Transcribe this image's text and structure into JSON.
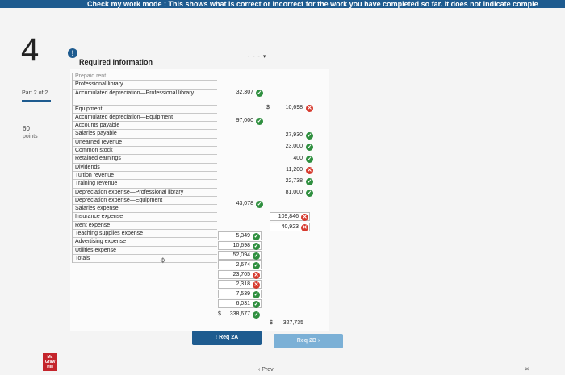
{
  "topbar": {
    "text": "Check my work mode : This shows what is correct or incorrect for the work you have completed so far. It does not indicate comple"
  },
  "question": {
    "number": "4",
    "info_icon": "!",
    "required_info": "Required information"
  },
  "part": {
    "label": "Part 2 of 2",
    "points_value": "60",
    "points_label": "points"
  },
  "sheet": {
    "scroll_marks": "- - - ▾",
    "cut_label": "Prepaid rent",
    "accounts": [
      "Professional library",
      "Accumulated depreciation—Professional library",
      "Equipment",
      "Accumulated depreciation—Equipment",
      "Accounts payable",
      "Salaries payable",
      "Unearned revenue",
      "Common stock",
      "Retained earnings",
      "Dividends",
      "Tuition revenue",
      "Training revenue",
      "Depreciation expense—Professional library",
      "Depreciation expense—Equipment",
      "Salaries expense",
      "Insurance expense",
      "Rent expense",
      "Teaching supplies expense",
      "Advertising expense",
      "Utilities expense",
      "Totals"
    ],
    "debits": {
      "prof_library": "32,307",
      "equipment": "97,000",
      "dividends": "43,078",
      "dep_prof": "5,349",
      "dep_equip": "10,698",
      "salaries": "52,094",
      "insurance": "2,674",
      "rent": "23,705",
      "teaching": "2,318",
      "advertising": "7,539",
      "utilities": "6,031",
      "total": "338,677",
      "dollar": "$"
    },
    "credits": {
      "acc_dep_prof": "10,698",
      "acc_dep_equip": "27,930",
      "accounts_payable": "23,000",
      "salaries_payable": "400",
      "unearned": "11,200",
      "common_stock": "22,738",
      "retained": "81,000",
      "tuition": "109,846",
      "training": "40,923",
      "total": "327,735",
      "dollar": "$"
    },
    "marks": {
      "ok": "✓",
      "bad": "✕"
    }
  },
  "nav": {
    "prev": "‹  Req 2A",
    "next": "Req 2B  ›"
  },
  "footer": {
    "logo": "Mc Graw Hill",
    "link": "‹ Prev",
    "icon": "∞"
  }
}
